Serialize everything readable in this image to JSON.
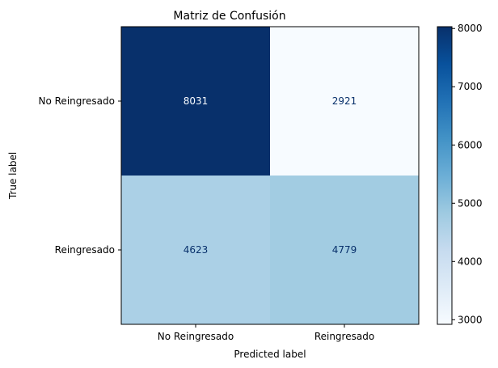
{
  "chart_data": {
    "type": "heatmap",
    "title": "Matriz de Confusión",
    "xlabel": "Predicted label",
    "ylabel": "True label",
    "x_categories": [
      "No Reingresado",
      "Reingresado"
    ],
    "y_categories": [
      "No Reingresado",
      "Reingresado"
    ],
    "values": [
      [
        8031,
        2921
      ],
      [
        4623,
        4779
      ]
    ],
    "colormap": "Blues",
    "colorbar": {
      "range": [
        2921,
        8031
      ],
      "ticks": [
        3000,
        4000,
        5000,
        6000,
        7000,
        8000
      ]
    },
    "grid": false
  }
}
